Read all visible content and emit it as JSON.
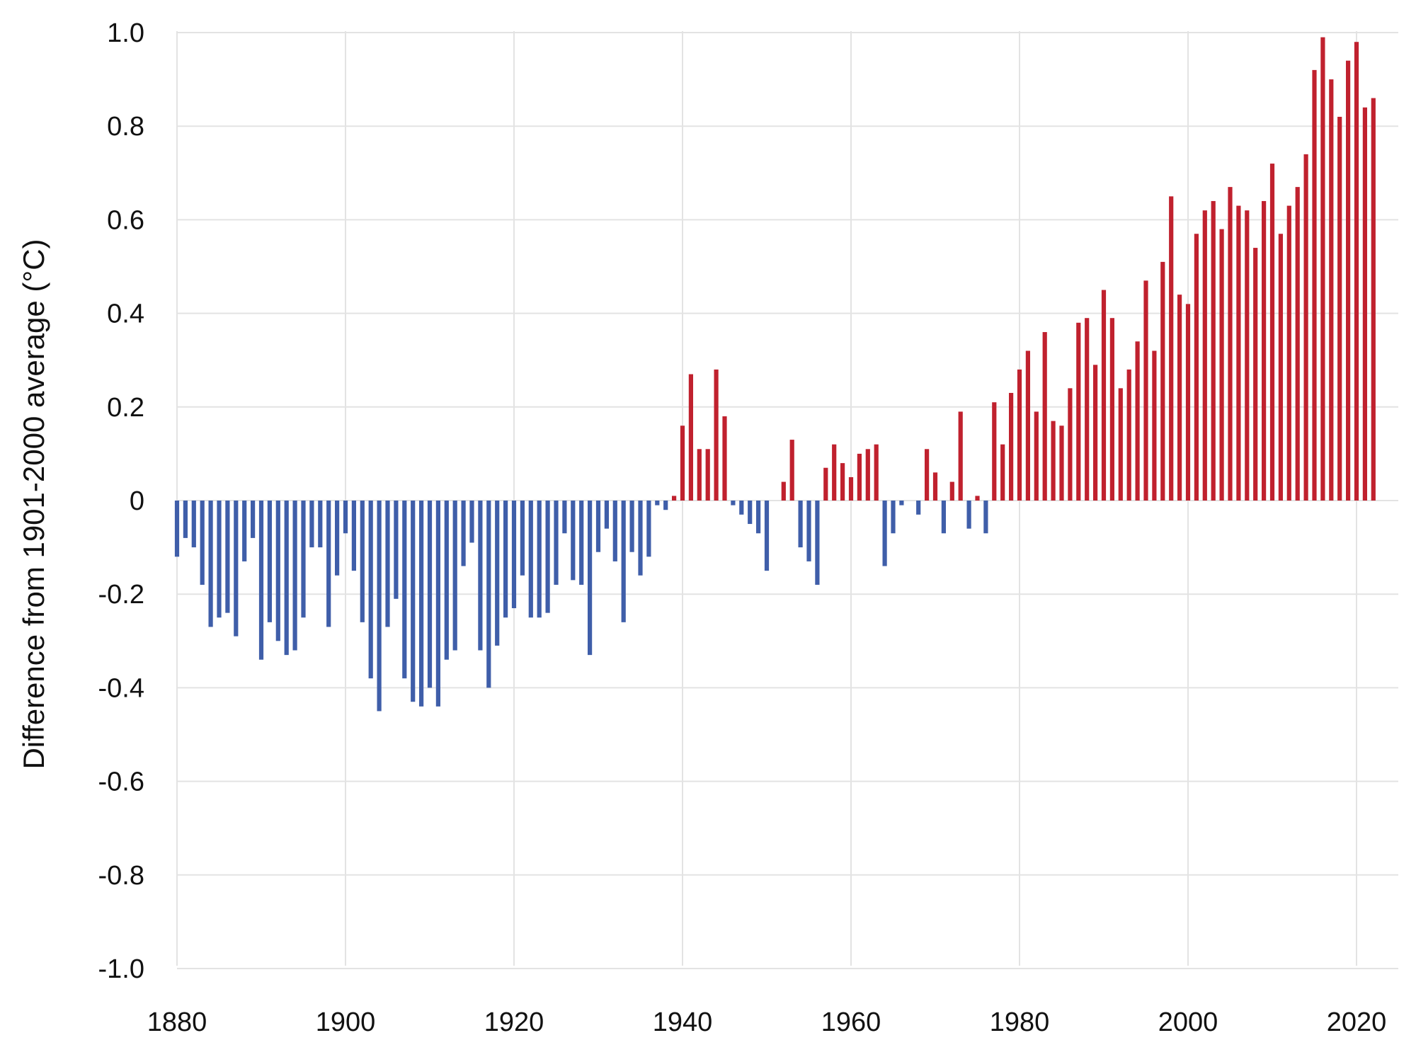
{
  "chart_data": {
    "type": "bar",
    "title": "",
    "xlabel": "",
    "ylabel": "Difference from 1901-2000 average (°C)",
    "ylim": [
      -1.0,
      1.0
    ],
    "xlim": [
      1880,
      2025
    ],
    "grid": true,
    "legend": "none",
    "yticks": [
      "1.0",
      "0.8",
      "0.6",
      "0.4",
      "0.2",
      "0",
      "-0.2",
      "-0.4",
      "-0.6",
      "-0.8",
      "-1.0"
    ],
    "ytick_values": [
      1.0,
      0.8,
      0.6,
      0.4,
      0.2,
      0,
      -0.2,
      -0.4,
      -0.6,
      -0.8,
      -1.0
    ],
    "xticks": [
      "1880",
      "1900",
      "1920",
      "1940",
      "1960",
      "1980",
      "2000",
      "2020"
    ],
    "xtick_values": [
      1880,
      1900,
      1920,
      1940,
      1960,
      1980,
      2000,
      2020
    ],
    "colors": {
      "positive": "#c0212e",
      "negative": "#3f5ea9"
    },
    "years": [
      1880,
      1881,
      1882,
      1883,
      1884,
      1885,
      1886,
      1887,
      1888,
      1889,
      1890,
      1891,
      1892,
      1893,
      1894,
      1895,
      1896,
      1897,
      1898,
      1899,
      1900,
      1901,
      1902,
      1903,
      1904,
      1905,
      1906,
      1907,
      1908,
      1909,
      1910,
      1911,
      1912,
      1913,
      1914,
      1915,
      1916,
      1917,
      1918,
      1919,
      1920,
      1921,
      1922,
      1923,
      1924,
      1925,
      1926,
      1927,
      1928,
      1929,
      1930,
      1931,
      1932,
      1933,
      1934,
      1935,
      1936,
      1937,
      1938,
      1939,
      1940,
      1941,
      1942,
      1943,
      1944,
      1945,
      1946,
      1947,
      1948,
      1949,
      1950,
      1951,
      1952,
      1953,
      1954,
      1955,
      1956,
      1957,
      1958,
      1959,
      1960,
      1961,
      1962,
      1963,
      1964,
      1965,
      1966,
      1967,
      1968,
      1969,
      1970,
      1971,
      1972,
      1973,
      1974,
      1975,
      1976,
      1977,
      1978,
      1979,
      1980,
      1981,
      1982,
      1983,
      1984,
      1985,
      1986,
      1987,
      1988,
      1989,
      1990,
      1991,
      1992,
      1993,
      1994,
      1995,
      1996,
      1997,
      1998,
      1999,
      2000,
      2001,
      2002,
      2003,
      2004,
      2005,
      2006,
      2007,
      2008,
      2009,
      2010,
      2011,
      2012,
      2013,
      2014,
      2015,
      2016,
      2017,
      2018,
      2019,
      2020,
      2021,
      2022
    ],
    "values": [
      -0.12,
      -0.08,
      -0.1,
      -0.18,
      -0.27,
      -0.25,
      -0.24,
      -0.29,
      -0.13,
      -0.08,
      -0.34,
      -0.26,
      -0.3,
      -0.33,
      -0.32,
      -0.25,
      -0.1,
      -0.1,
      -0.27,
      -0.16,
      -0.07,
      -0.15,
      -0.26,
      -0.38,
      -0.45,
      -0.27,
      -0.21,
      -0.38,
      -0.43,
      -0.44,
      -0.4,
      -0.44,
      -0.34,
      -0.32,
      -0.14,
      -0.09,
      -0.32,
      -0.4,
      -0.31,
      -0.25,
      -0.23,
      -0.16,
      -0.25,
      -0.25,
      -0.24,
      -0.18,
      -0.07,
      -0.17,
      -0.18,
      -0.33,
      -0.11,
      -0.06,
      -0.13,
      -0.26,
      -0.11,
      -0.16,
      -0.12,
      -0.01,
      -0.02,
      0.01,
      0.16,
      0.27,
      0.11,
      0.11,
      0.28,
      0.18,
      -0.01,
      -0.03,
      -0.05,
      -0.07,
      -0.15,
      0.0,
      0.04,
      0.13,
      -0.1,
      -0.13,
      -0.18,
      0.07,
      0.12,
      0.08,
      0.05,
      0.1,
      0.11,
      0.12,
      -0.14,
      -0.07,
      -0.01,
      0.0,
      -0.03,
      0.11,
      0.06,
      -0.07,
      0.04,
      0.19,
      -0.06,
      0.01,
      -0.07,
      0.21,
      0.12,
      0.23,
      0.28,
      0.32,
      0.19,
      0.36,
      0.17,
      0.16,
      0.24,
      0.38,
      0.39,
      0.29,
      0.45,
      0.39,
      0.24,
      0.28,
      0.34,
      0.47,
      0.32,
      0.51,
      0.65,
      0.44,
      0.42,
      0.57,
      0.62,
      0.64,
      0.58,
      0.67,
      0.63,
      0.62,
      0.54,
      0.64,
      0.72,
      0.57,
      0.63,
      0.67,
      0.74,
      0.92,
      0.99,
      0.9,
      0.82,
      0.94,
      0.98,
      0.84,
      0.86
    ]
  }
}
